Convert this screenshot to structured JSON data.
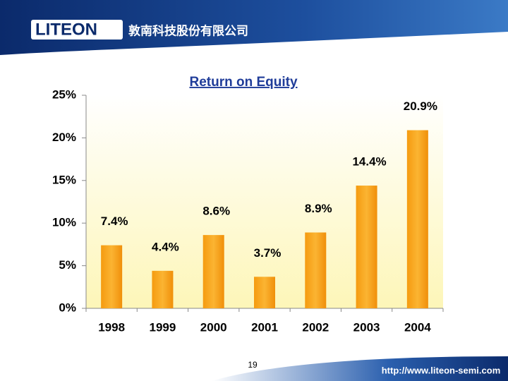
{
  "slide": {
    "logo": "LITEON",
    "company": "敦南科技股份有限公司",
    "page_number": "19",
    "url": "http://www.liteon-semi.com"
  },
  "chart_data": {
    "type": "bar",
    "title": "Return on Equity",
    "categories": [
      "1998",
      "1999",
      "2000",
      "2001",
      "2002",
      "2003",
      "2004"
    ],
    "values": [
      7.4,
      4.4,
      8.6,
      3.7,
      8.9,
      14.4,
      20.9
    ],
    "value_labels": [
      "7.4%",
      "4.4%",
      "8.6%",
      "3.7%",
      "8.9%",
      "14.4%",
      "20.9%"
    ],
    "color": "#f7a21b",
    "ylim": [
      0,
      25
    ],
    "yticks": [
      {
        "value": 0,
        "label": "0%"
      },
      {
        "value": 5,
        "label": "5%"
      },
      {
        "value": 10,
        "label": "10%"
      },
      {
        "value": 15,
        "label": "15%"
      },
      {
        "value": 20,
        "label": "20%"
      },
      {
        "value": 25,
        "label": "25%"
      }
    ]
  }
}
